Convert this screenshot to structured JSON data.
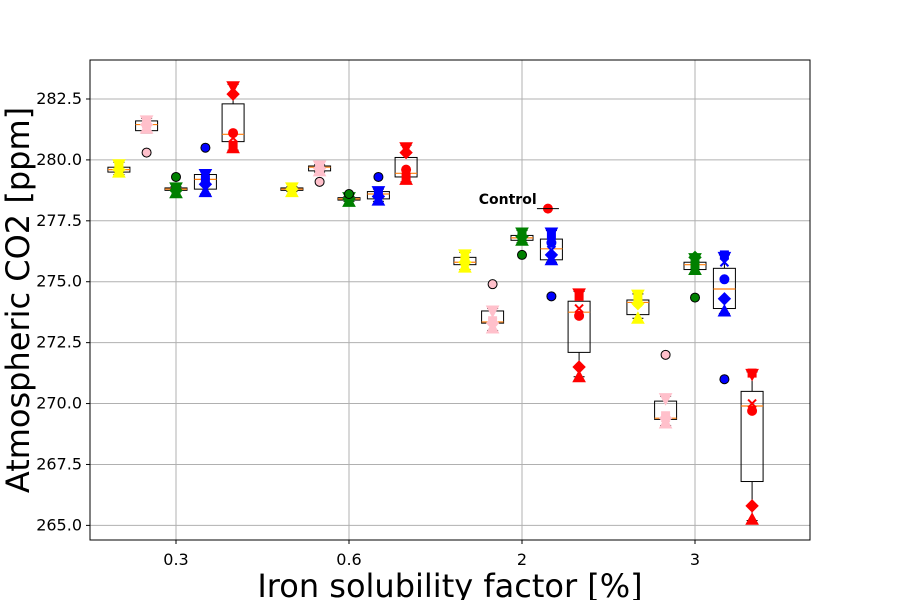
{
  "chart_data": {
    "type": "box",
    "title": "",
    "xlabel": "Iron solubility factor [%]",
    "ylabel": "Atmospheric CO2 [ppm]",
    "x_categories": [
      "0.3",
      "0.6",
      "2",
      "3"
    ],
    "ylim": [
      264.4,
      284.1
    ],
    "yticks": [
      265.0,
      267.5,
      270.0,
      272.5,
      275.0,
      277.5,
      280.0,
      282.5
    ],
    "ytick_labels": [
      "265.0",
      "267.5",
      "270.0",
      "272.5",
      "275.0",
      "277.5",
      "280.0",
      "282.5"
    ],
    "grid": true,
    "annotations": [
      {
        "text": "Control",
        "x": 2.75,
        "y": 278.4
      }
    ],
    "control": {
      "x": 3.15,
      "y": 278.0,
      "color": "#ff0000",
      "marker": "circle"
    },
    "series_colors": {
      "yellow": "#ffff00",
      "pink": "#ffc0cb",
      "green": "#008000",
      "blue": "#0000ff",
      "red": "#ff0000"
    },
    "boxes": [
      {
        "group": "0.3",
        "color": "yellow",
        "x": -0.33,
        "whislo": 279.4,
        "q1": 279.5,
        "med": 279.6,
        "q3": 279.7,
        "whishi": 279.9,
        "points": [
          {
            "y": 279.8,
            "m": "triangle-down"
          },
          {
            "y": 279.7,
            "m": "square"
          },
          {
            "y": 279.6,
            "m": "diamond"
          },
          {
            "y": 279.5,
            "m": "triangle-up"
          },
          {
            "y": 279.6,
            "m": "x"
          }
        ],
        "outliers": []
      },
      {
        "group": "0.3",
        "color": "pink",
        "x": -0.17,
        "whislo": 281.1,
        "q1": 281.2,
        "med": 281.45,
        "q3": 281.6,
        "whishi": 281.7,
        "points": [
          {
            "y": 281.6,
            "m": "triangle-down"
          },
          {
            "y": 281.5,
            "m": "square"
          },
          {
            "y": 281.45,
            "m": "diamond"
          },
          {
            "y": 281.3,
            "m": "triangle-up"
          },
          {
            "y": 281.45,
            "m": "x"
          }
        ],
        "outliers": [
          280.3
        ]
      },
      {
        "group": "0.3",
        "color": "green",
        "x": 0.0,
        "whislo": 278.7,
        "q1": 278.75,
        "med": 278.8,
        "q3": 278.85,
        "whishi": 278.9,
        "points": [
          {
            "y": 278.85,
            "m": "triangle-down"
          },
          {
            "y": 278.8,
            "m": "square"
          },
          {
            "y": 278.75,
            "m": "diamond"
          },
          {
            "y": 278.65,
            "m": "triangle-up"
          },
          {
            "y": 278.8,
            "m": "x"
          }
        ],
        "outliers": [
          279.3
        ]
      },
      {
        "group": "0.3",
        "color": "blue",
        "x": 0.17,
        "whislo": 278.6,
        "q1": 278.8,
        "med": 279.2,
        "q3": 279.4,
        "whishi": 279.6,
        "points": [
          {
            "y": 279.4,
            "m": "triangle-down"
          },
          {
            "y": 279.2,
            "m": "square"
          },
          {
            "y": 279.0,
            "m": "diamond"
          },
          {
            "y": 278.7,
            "m": "triangle-up"
          },
          {
            "y": 279.1,
            "m": "x"
          }
        ],
        "outliers": [
          280.5
        ]
      },
      {
        "group": "0.3",
        "color": "red",
        "x": 0.33,
        "whislo": 280.4,
        "q1": 280.75,
        "med": 281.05,
        "q3": 282.3,
        "whishi": 283.1,
        "points": [
          {
            "y": 283.0,
            "m": "triangle-down"
          },
          {
            "y": 280.6,
            "m": "square"
          },
          {
            "y": 282.7,
            "m": "diamond"
          },
          {
            "y": 280.5,
            "m": "triangle-up"
          },
          {
            "y": 280.9,
            "m": "x"
          },
          {
            "y": 281.1,
            "m": "circle"
          }
        ],
        "outliers": []
      },
      {
        "group": "0.6",
        "color": "yellow",
        "x": -0.33,
        "whislo": 278.7,
        "q1": 278.75,
        "med": 278.8,
        "q3": 278.85,
        "whishi": 278.9,
        "points": [
          {
            "y": 278.85,
            "m": "triangle-down"
          },
          {
            "y": 278.8,
            "m": "square"
          },
          {
            "y": 278.8,
            "m": "diamond"
          },
          {
            "y": 278.7,
            "m": "triangle-up"
          },
          {
            "y": 278.8,
            "m": "x"
          }
        ],
        "outliers": []
      },
      {
        "group": "0.6",
        "color": "pink",
        "x": -0.17,
        "whislo": 279.5,
        "q1": 279.55,
        "med": 279.7,
        "q3": 279.75,
        "whishi": 279.8,
        "points": [
          {
            "y": 279.75,
            "m": "triangle-down"
          },
          {
            "y": 279.7,
            "m": "square"
          },
          {
            "y": 279.65,
            "m": "diamond"
          },
          {
            "y": 279.55,
            "m": "triangle-up"
          },
          {
            "y": 279.7,
            "m": "x"
          }
        ],
        "outliers": [
          279.1
        ]
      },
      {
        "group": "0.6",
        "color": "green",
        "x": 0.0,
        "whislo": 278.3,
        "q1": 278.35,
        "med": 278.4,
        "q3": 278.45,
        "whishi": 278.5,
        "points": [
          {
            "y": 278.45,
            "m": "triangle-down"
          },
          {
            "y": 278.4,
            "m": "square"
          },
          {
            "y": 278.4,
            "m": "diamond"
          },
          {
            "y": 278.3,
            "m": "triangle-up"
          },
          {
            "y": 278.4,
            "m": "x"
          }
        ],
        "outliers": [
          278.6
        ]
      },
      {
        "group": "0.6",
        "color": "blue",
        "x": 0.17,
        "whislo": 278.3,
        "q1": 278.4,
        "med": 278.6,
        "q3": 278.7,
        "whishi": 278.8,
        "points": [
          {
            "y": 278.7,
            "m": "triangle-down"
          },
          {
            "y": 278.6,
            "m": "square"
          },
          {
            "y": 278.5,
            "m": "diamond"
          },
          {
            "y": 278.35,
            "m": "triangle-up"
          },
          {
            "y": 278.6,
            "m": "x"
          }
        ],
        "outliers": [
          279.3
        ]
      },
      {
        "group": "0.6",
        "color": "red",
        "x": 0.33,
        "whislo": 279.1,
        "q1": 279.3,
        "med": 279.45,
        "q3": 280.1,
        "whishi": 280.6,
        "points": [
          {
            "y": 280.5,
            "m": "triangle-down"
          },
          {
            "y": 279.3,
            "m": "square"
          },
          {
            "y": 280.3,
            "m": "diamond"
          },
          {
            "y": 279.2,
            "m": "triangle-up"
          },
          {
            "y": 279.45,
            "m": "x"
          },
          {
            "y": 279.6,
            "m": "circle"
          }
        ],
        "outliers": []
      },
      {
        "group": "2",
        "color": "yellow",
        "x": -0.33,
        "whislo": 275.5,
        "q1": 275.7,
        "med": 275.8,
        "q3": 276.0,
        "whishi": 276.2,
        "points": [
          {
            "y": 276.1,
            "m": "triangle-down"
          },
          {
            "y": 275.9,
            "m": "square"
          },
          {
            "y": 275.8,
            "m": "diamond"
          },
          {
            "y": 275.6,
            "m": "triangle-up"
          },
          {
            "y": 275.8,
            "m": "x"
          }
        ],
        "outliers": []
      },
      {
        "group": "2",
        "color": "pink",
        "x": -0.17,
        "whislo": 273.0,
        "q1": 273.3,
        "med": 273.35,
        "q3": 273.8,
        "whishi": 273.9,
        "points": [
          {
            "y": 273.8,
            "m": "triangle-down"
          },
          {
            "y": 273.4,
            "m": "square"
          },
          {
            "y": 273.3,
            "m": "diamond"
          },
          {
            "y": 273.1,
            "m": "triangle-up"
          },
          {
            "y": 273.35,
            "m": "x"
          }
        ],
        "outliers": [
          274.9
        ]
      },
      {
        "group": "2",
        "color": "green",
        "x": 0.0,
        "whislo": 276.6,
        "q1": 276.7,
        "med": 276.8,
        "q3": 276.9,
        "whishi": 277.1,
        "points": [
          {
            "y": 277.0,
            "m": "triangle-down"
          },
          {
            "y": 276.9,
            "m": "square"
          },
          {
            "y": 276.85,
            "m": "diamond"
          },
          {
            "y": 276.7,
            "m": "triangle-up"
          },
          {
            "y": 276.8,
            "m": "x"
          }
        ],
        "outliers": [
          276.1
        ]
      },
      {
        "group": "2",
        "color": "blue",
        "x": 0.17,
        "whislo": 275.8,
        "q1": 275.9,
        "med": 276.35,
        "q3": 276.75,
        "whishi": 277.1,
        "points": [
          {
            "y": 277.0,
            "m": "triangle-down"
          },
          {
            "y": 276.9,
            "m": "square"
          },
          {
            "y": 276.1,
            "m": "diamond"
          },
          {
            "y": 275.9,
            "m": "triangle-up"
          },
          {
            "y": 276.3,
            "m": "x"
          },
          {
            "y": 276.6,
            "m": "circle"
          }
        ],
        "outliers": [
          274.4
        ]
      },
      {
        "group": "2",
        "color": "red",
        "x": 0.33,
        "whislo": 271.1,
        "q1": 272.1,
        "med": 273.75,
        "q3": 274.2,
        "whishi": 274.6,
        "points": [
          {
            "y": 274.5,
            "m": "triangle-down"
          },
          {
            "y": 274.4,
            "m": "square"
          },
          {
            "y": 271.5,
            "m": "diamond"
          },
          {
            "y": 271.1,
            "m": "triangle-up"
          },
          {
            "y": 273.9,
            "m": "x"
          },
          {
            "y": 273.6,
            "m": "circle"
          }
        ],
        "outliers": []
      },
      {
        "group": "3",
        "color": "yellow",
        "x": -0.33,
        "whislo": 273.5,
        "q1": 273.65,
        "med": 274.15,
        "q3": 274.25,
        "whishi": 274.5,
        "points": [
          {
            "y": 274.45,
            "m": "triangle-down"
          },
          {
            "y": 274.3,
            "m": "square"
          },
          {
            "y": 274.1,
            "m": "diamond"
          },
          {
            "y": 273.5,
            "m": "triangle-up"
          },
          {
            "y": 274.15,
            "m": "x"
          }
        ],
        "outliers": []
      },
      {
        "group": "3",
        "color": "pink",
        "x": -0.17,
        "whislo": 269.1,
        "q1": 269.35,
        "med": 269.4,
        "q3": 270.1,
        "whishi": 270.3,
        "points": [
          {
            "y": 270.2,
            "m": "triangle-down"
          },
          {
            "y": 269.5,
            "m": "square"
          },
          {
            "y": 269.4,
            "m": "diamond"
          },
          {
            "y": 269.2,
            "m": "triangle-up"
          },
          {
            "y": 269.4,
            "m": "x"
          }
        ],
        "outliers": [
          272.0
        ]
      },
      {
        "group": "3",
        "color": "green",
        "x": 0.0,
        "whislo": 275.5,
        "q1": 275.5,
        "med": 275.7,
        "q3": 275.8,
        "whishi": 276.0,
        "points": [
          {
            "y": 275.95,
            "m": "triangle-down"
          },
          {
            "y": 275.7,
            "m": "square"
          },
          {
            "y": 276.0,
            "m": "diamond"
          },
          {
            "y": 275.5,
            "m": "triangle-up"
          },
          {
            "y": 275.7,
            "m": "x"
          }
        ],
        "outliers": [
          274.35
        ]
      },
      {
        "group": "3",
        "color": "blue",
        "x": 0.17,
        "whislo": 273.7,
        "q1": 273.9,
        "med": 274.7,
        "q3": 275.55,
        "whishi": 276.1,
        "points": [
          {
            "y": 276.0,
            "m": "triangle-down"
          },
          {
            "y": 276.1,
            "m": "square"
          },
          {
            "y": 274.3,
            "m": "diamond"
          },
          {
            "y": 273.8,
            "m": "triangle-up"
          },
          {
            "y": 275.8,
            "m": "x"
          },
          {
            "y": 275.1,
            "m": "circle"
          }
        ],
        "outliers": [
          271.0
        ]
      },
      {
        "group": "3",
        "color": "red",
        "x": 0.33,
        "whislo": 265.2,
        "q1": 266.8,
        "med": 269.9,
        "q3": 270.5,
        "whishi": 271.3,
        "points": [
          {
            "y": 271.2,
            "m": "triangle-down"
          },
          {
            "y": 271.25,
            "m": "square"
          },
          {
            "y": 265.8,
            "m": "diamond"
          },
          {
            "y": 265.25,
            "m": "triangle-up"
          },
          {
            "y": 270.0,
            "m": "x"
          },
          {
            "y": 269.7,
            "m": "circle"
          }
        ],
        "outliers": []
      }
    ]
  }
}
